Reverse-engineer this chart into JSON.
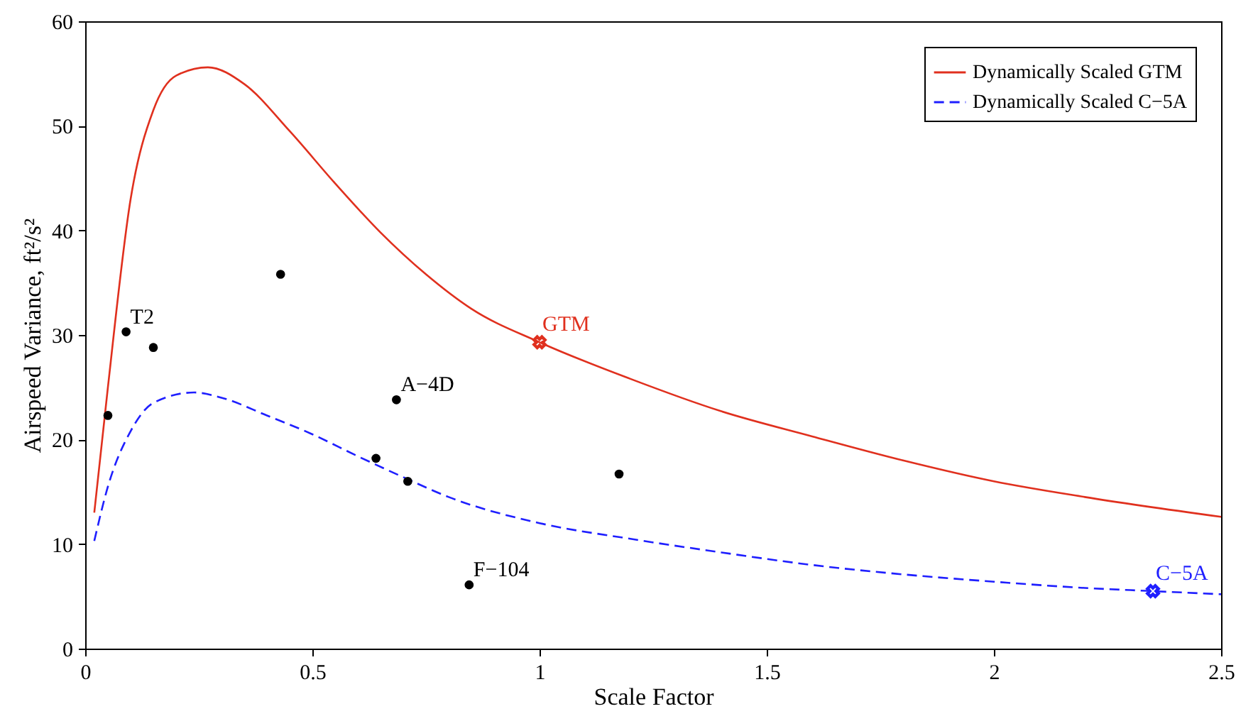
{
  "chart_data": {
    "type": "line",
    "xlabel": "Scale Factor",
    "ylabel": "Airspeed Variance, ft²/s²",
    "xlim": [
      0,
      2.5
    ],
    "xticks": [
      0,
      0.5,
      1,
      1.5,
      2,
      2.5
    ],
    "ylim": [
      0,
      60
    ],
    "yticks": [
      0,
      10,
      20,
      30,
      40,
      50,
      60
    ],
    "legend": "top right",
    "series": [
      {
        "name": "Dynamically Scaled GTM",
        "color": "#e0301e",
        "line_style": "solid",
        "x": [
          0.02,
          0.05,
          0.1,
          0.15,
          0.2,
          0.27,
          0.35,
          0.45,
          0.55,
          0.65,
          0.75,
          0.85,
          1.0,
          1.2,
          1.4,
          1.6,
          1.8,
          2.0,
          2.2,
          2.5
        ],
        "values": [
          13,
          25,
          43,
          51.5,
          54.8,
          55.6,
          54,
          49.5,
          44.5,
          39.8,
          35.8,
          32.5,
          29.3,
          25.8,
          22.7,
          20.3,
          18,
          16,
          14.5,
          12.6
        ]
      },
      {
        "name": "Dynamically Scaled C−5A",
        "color": "#1f1fff",
        "line_style": "dashed",
        "x": [
          0.02,
          0.05,
          0.1,
          0.15,
          0.24,
          0.3,
          0.4,
          0.5,
          0.6,
          0.7,
          0.8,
          1.0,
          1.2,
          1.4,
          1.6,
          1.8,
          2.0,
          2.2,
          2.35,
          2.5
        ],
        "values": [
          10.3,
          15.5,
          20.8,
          23.5,
          24.5,
          24,
          22.3,
          20.5,
          18.4,
          16.4,
          14.5,
          12,
          10.5,
          9.2,
          8,
          7.1,
          6.4,
          5.8,
          5.5,
          5.2
        ]
      },
      {
        "type": "scatter",
        "color": "#000000",
        "marker": "circle",
        "x": [
          0.09,
          0.15,
          0.43,
          0.05,
          0.685,
          0.64,
          0.71,
          1.175,
          0.845
        ],
        "values": [
          30.3,
          28.8,
          35.8,
          22.3,
          23.8,
          18.2,
          16.0,
          16.7,
          6.1
        ]
      },
      {
        "type": "scatter",
        "name": "GTM",
        "color": "#e0301e",
        "marker": "cross",
        "x": [
          1.0
        ],
        "values": [
          29.3
        ]
      },
      {
        "type": "scatter",
        "name": "C−5A",
        "color": "#1f1fff",
        "marker": "cross",
        "x": [
          2.35
        ],
        "values": [
          5.5
        ]
      }
    ],
    "annotations": [
      {
        "text": "T2",
        "x": 0.09,
        "y": 30.3
      },
      {
        "text": "A−4D",
        "x": 0.685,
        "y": 23.8
      },
      {
        "text": "F−104",
        "x": 0.845,
        "y": 6.1
      }
    ]
  }
}
